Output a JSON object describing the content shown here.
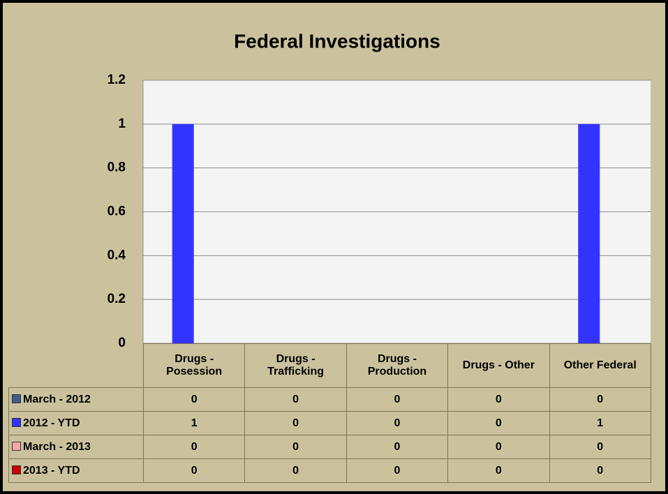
{
  "chart_data": {
    "type": "bar",
    "title": "Federal Investigations",
    "categories": [
      "Drugs - Posession",
      "Drugs - Trafficking",
      "Drugs - Production",
      "Drugs - Other",
      "Other Federal"
    ],
    "series": [
      {
        "name": "March - 2012",
        "color": "#3f5b8c",
        "values": [
          0,
          0,
          0,
          0,
          0
        ]
      },
      {
        "name": "2012 - YTD",
        "color": "#3333ff",
        "values": [
          1,
          0,
          0,
          0,
          1
        ]
      },
      {
        "name": "March - 2013",
        "color": "#f2a9a9",
        "values": [
          0,
          0,
          0,
          0,
          0
        ]
      },
      {
        "name": "2013 - YTD",
        "color": "#cc0000",
        "values": [
          0,
          0,
          0,
          0,
          0
        ]
      }
    ],
    "ylim": [
      0,
      1.2
    ],
    "yticks": [
      0,
      0.2,
      0.4,
      0.6,
      0.8,
      1,
      1.2
    ],
    "grid": true
  }
}
